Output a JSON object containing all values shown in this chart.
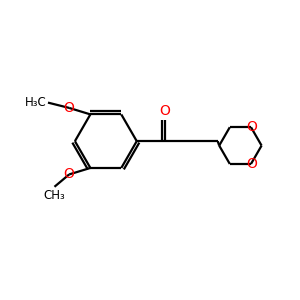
{
  "background_color": "#ffffff",
  "bond_color": "#000000",
  "oxygen_color": "#ff0000",
  "line_width": 1.6,
  "font_size_atom": 10,
  "font_size_methyl": 8.5,
  "xlim": [
    0,
    10
  ],
  "ylim": [
    0,
    10
  ]
}
